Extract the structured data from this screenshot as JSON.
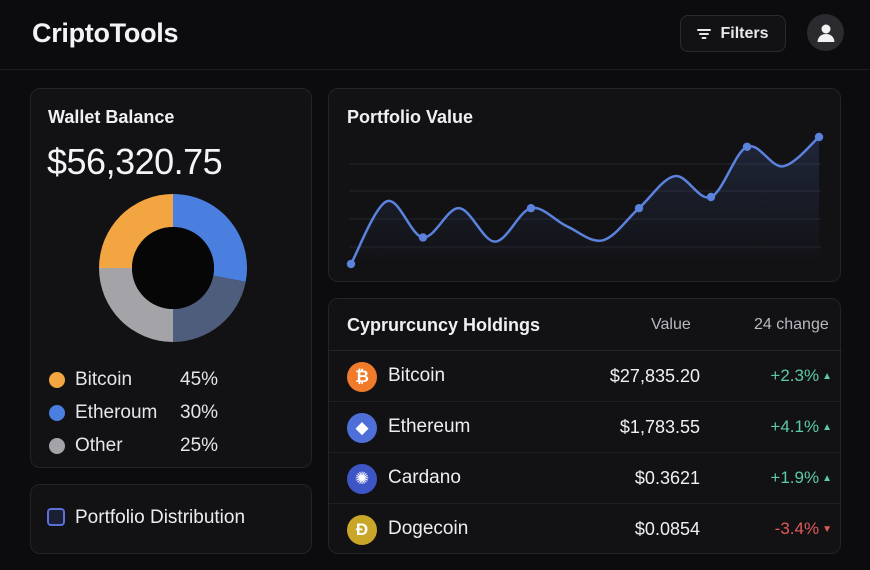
{
  "app": {
    "title": "CriptoTools"
  },
  "header": {
    "filters_label": "Filters",
    "filters_icon": "filter-lines-icon",
    "avatar_icon": "user-icon"
  },
  "wallet": {
    "title": "Wallet Balance",
    "balance": "$56,320.75",
    "distribution": [
      {
        "name": "Bitcoin",
        "pct": "45%",
        "value": 45,
        "color": "#f2a541"
      },
      {
        "name": "Etheroum",
        "pct": "30%",
        "value": 30,
        "color": "#4a7fe0"
      },
      {
        "name": "Other",
        "pct": "25%",
        "value": 25,
        "color": "#a3a3a8"
      }
    ],
    "donut_extra_color": "#4e5d7c"
  },
  "distribution_button": {
    "label": "Portfolio Distribution"
  },
  "portfolio": {
    "title": "Portfolio Value",
    "line_color": "#5b82dd",
    "chart_data": {
      "type": "line",
      "values": [
        0,
        45,
        19,
        40,
        16,
        40,
        27,
        17,
        40,
        63,
        48,
        84,
        70,
        91
      ],
      "markers_at": [
        0,
        2,
        5,
        8,
        10,
        11,
        13
      ]
    }
  },
  "holdings": {
    "title": "Cyprurcuncy Holdings",
    "col_value": "Value",
    "col_change": "24 change",
    "rows": [
      {
        "name": "Bitcoin",
        "symbol": "₿",
        "icon_color": "#f07b2a",
        "value": "$27,835.20",
        "change": "+2.3%",
        "direction": "up"
      },
      {
        "name": "Ethereum",
        "symbol": "◆",
        "icon_color": "#4f6fd8",
        "value": "$1,783.55",
        "change": "+4.1%",
        "direction": "up"
      },
      {
        "name": "Cardano",
        "symbol": "✺",
        "icon_color": "#3e55c6",
        "value": "$0.3621",
        "change": "+1.9%",
        "direction": "up"
      },
      {
        "name": "Dogecoin",
        "symbol": "Ɖ",
        "icon_color": "#c9a528",
        "value": "$0.0854",
        "change": "-3.4%",
        "direction": "down"
      }
    ]
  }
}
